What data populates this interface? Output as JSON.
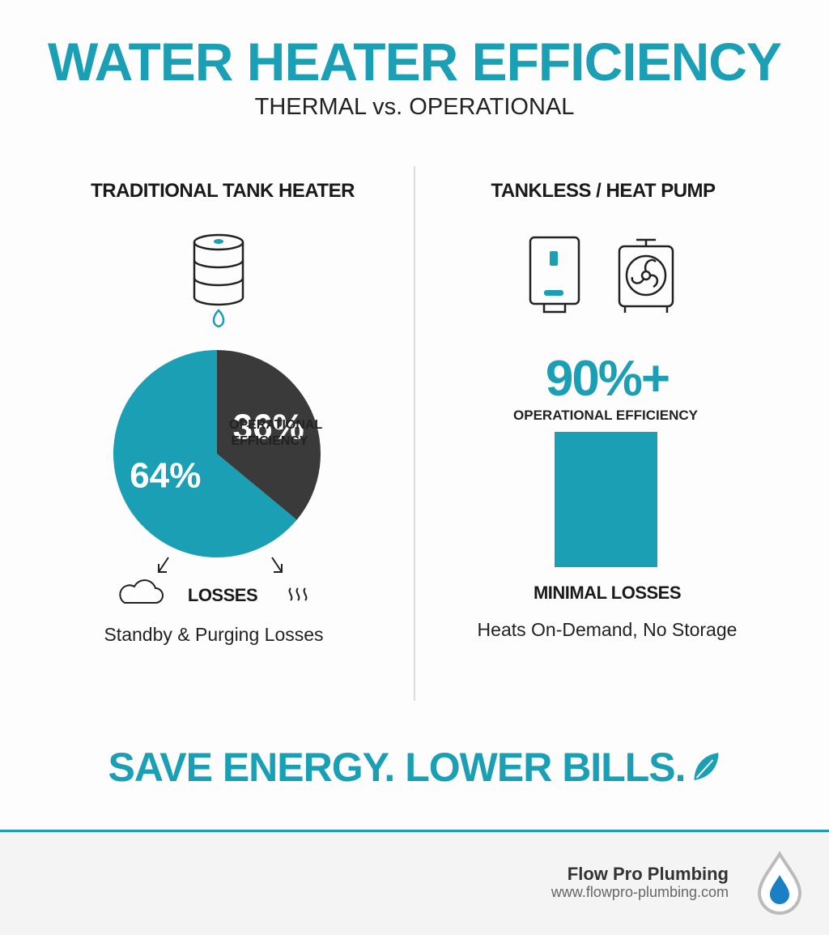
{
  "header": {
    "title": "WATER HEATER EFFICIENCY",
    "subtitle": "THERMAL vs. OPERATIONAL"
  },
  "left": {
    "heading": "TRADITIONAL TANK HEATER",
    "note": "Standby & Purging Losses"
  },
  "chart_data": {
    "type": "pie",
    "categories": [
      "OPERATIONAL EFFICIENCY",
      "LOSSES"
    ],
    "values": [
      64,
      36
    ],
    "value_labels": [
      "64%",
      "36%"
    ],
    "colors": [
      "#1a9fb5",
      "#3a3a3a"
    ]
  },
  "right": {
    "heading": "TANKLESS / HEAT PUMP",
    "figure": "90%+",
    "figure_label": "OPERATIONAL EFFICIENCY",
    "losses": "MINIMAL LOSSES",
    "note": "Heats On-Demand, No Storage"
  },
  "slogan": "SAVE ENERGY. LOWER BILLS.",
  "footer": {
    "company": "Flow Pro Plumbing",
    "url": "www.flowpro-plumbing.com"
  }
}
